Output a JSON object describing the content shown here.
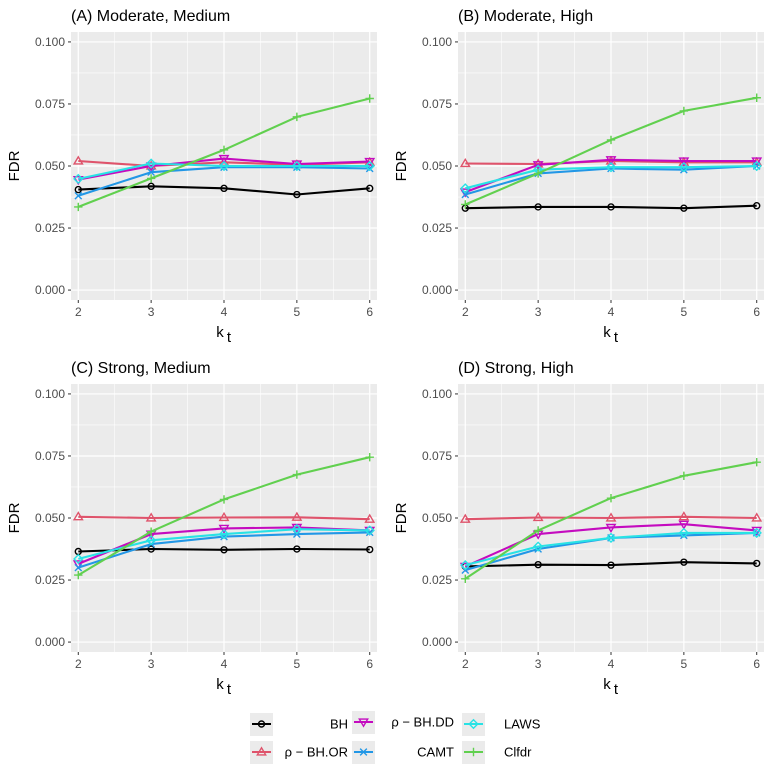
{
  "chart_data": {
    "type": "line",
    "ylabel": "FDR",
    "xlabel_main": "k",
    "xlabel_sub": "t",
    "xticks": [
      "2",
      "3",
      "4",
      "5",
      "6"
    ],
    "yticks": [
      "0.000",
      "0.025",
      "0.050",
      "0.075",
      "0.100"
    ],
    "ylim": [
      -0.004,
      0.104
    ],
    "xlim": [
      1.9,
      6.1
    ],
    "x": [
      2,
      3,
      4,
      5,
      6
    ],
    "methods": [
      {
        "key": "BH",
        "label": "BH",
        "color": "#000000",
        "marker": "circle"
      },
      {
        "key": "ORACLE",
        "label": "ρ − BH.OR",
        "color": "#df536b",
        "marker": "triangle-up"
      },
      {
        "key": "DD",
        "label": "ρ − BH.DD",
        "color": "#c40bbf",
        "marker": "triangle-down"
      },
      {
        "key": "CAMT",
        "label": "CAMT",
        "color": "#2297e6",
        "marker": "x"
      },
      {
        "key": "LAWS",
        "label": "LAWS",
        "color": "#28e2e5",
        "marker": "diamond"
      },
      {
        "key": "CLFDR",
        "label": "Clfdr",
        "color": "#61d04f",
        "marker": "plus"
      }
    ],
    "panels": [
      {
        "title": "(A) Moderate, Medium",
        "series": {
          "BH": [
            0.0405,
            0.0418,
            0.041,
            0.0385,
            0.041
          ],
          "ORACLE": [
            0.052,
            0.05,
            0.0515,
            0.0505,
            0.0515
          ],
          "DD": [
            0.0445,
            0.05,
            0.053,
            0.0508,
            0.0518
          ],
          "CAMT": [
            0.038,
            0.0475,
            0.0495,
            0.0495,
            0.049
          ],
          "LAWS": [
            0.0448,
            0.051,
            0.05,
            0.05,
            0.05
          ],
          "CLFDR": [
            0.0335,
            0.045,
            0.0565,
            0.0698,
            0.0772
          ]
        }
      },
      {
        "title": "(B) Moderate, High",
        "series": {
          "BH": [
            0.033,
            0.0335,
            0.0335,
            0.033,
            0.034
          ],
          "ORACLE": [
            0.051,
            0.0508,
            0.052,
            0.0515,
            0.0515
          ],
          "DD": [
            0.0395,
            0.0505,
            0.0525,
            0.052,
            0.052
          ],
          "CAMT": [
            0.0385,
            0.047,
            0.049,
            0.0485,
            0.05
          ],
          "LAWS": [
            0.041,
            0.0485,
            0.0495,
            0.0495,
            0.05
          ],
          "CLFDR": [
            0.0345,
            0.047,
            0.0605,
            0.0722,
            0.0775
          ]
        }
      },
      {
        "title": "(C) Strong, Medium",
        "series": {
          "BH": [
            0.0365,
            0.0375,
            0.0372,
            0.0375,
            0.0373
          ],
          "ORACLE": [
            0.0505,
            0.05,
            0.0502,
            0.0503,
            0.0495
          ],
          "DD": [
            0.0315,
            0.0435,
            0.0458,
            0.0462,
            0.045
          ],
          "CAMT": [
            0.03,
            0.0395,
            0.0425,
            0.0435,
            0.0442
          ],
          "LAWS": [
            0.0335,
            0.041,
            0.0435,
            0.0455,
            0.045
          ],
          "CLFDR": [
            0.027,
            0.0445,
            0.0575,
            0.0675,
            0.0745
          ]
        }
      },
      {
        "title": "(D) Strong, High",
        "series": {
          "BH": [
            0.0305,
            0.0312,
            0.031,
            0.0322,
            0.0317
          ],
          "ORACLE": [
            0.0495,
            0.0502,
            0.05,
            0.0505,
            0.05
          ],
          "DD": [
            0.0305,
            0.0435,
            0.0462,
            0.0475,
            0.045
          ],
          "CAMT": [
            0.029,
            0.0375,
            0.042,
            0.043,
            0.044
          ],
          "LAWS": [
            0.031,
            0.0385,
            0.042,
            0.044,
            0.044
          ],
          "CLFDR": [
            0.0255,
            0.045,
            0.058,
            0.067,
            0.0725
          ]
        }
      }
    ],
    "legend": {
      "position": "bottom",
      "columns": [
        [
          "BH",
          "ORACLE"
        ],
        [
          "DD",
          "CAMT"
        ],
        [
          "LAWS",
          "CLFDR"
        ]
      ]
    }
  }
}
